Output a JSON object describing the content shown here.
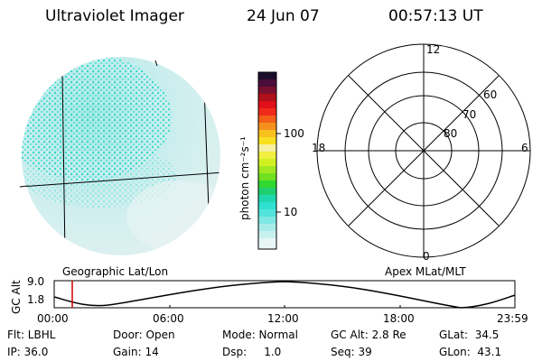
{
  "header": {
    "instrument": "Ultraviolet Imager",
    "date": "24 Jun 07",
    "time": "00:57:13 UT"
  },
  "colorbar": {
    "unit_label": "photon cm⁻²s⁻¹",
    "ticks": [
      "100",
      "10"
    ]
  },
  "polar_grid": {
    "clock_labels": [
      "12",
      "18",
      "6",
      "0"
    ],
    "lat_labels": [
      "60",
      "70",
      "80"
    ]
  },
  "panel_labels": {
    "left": "Geographic Lat/Lon",
    "right": "Apex MLat/MLT"
  },
  "altitude_plot": {
    "ylabel": "GC Alt",
    "y_ticks": [
      "9.0",
      "1.8"
    ],
    "x_ticks": [
      "00:00",
      "06:00",
      "12:00",
      "18:00",
      "23:59"
    ],
    "marker_color": "#cc0000"
  },
  "status": {
    "filter": "Flt: LBHL",
    "ip": "IP: 36.0",
    "door": "Door: Open",
    "gain": "Gain: 14",
    "mode": "Mode: Normal",
    "dsp": "Dsp:     1.0",
    "gc_alt": "GC Alt: 2.8 Re",
    "seq": "Seq: 39",
    "glat": "GLat:  34.5",
    "glon": "GLon:  43.1"
  },
  "colors": {
    "auroral_cyan": "#3ed8d0",
    "auroral_light": "#bfe8e8",
    "accent_marker": "#cc0000"
  }
}
